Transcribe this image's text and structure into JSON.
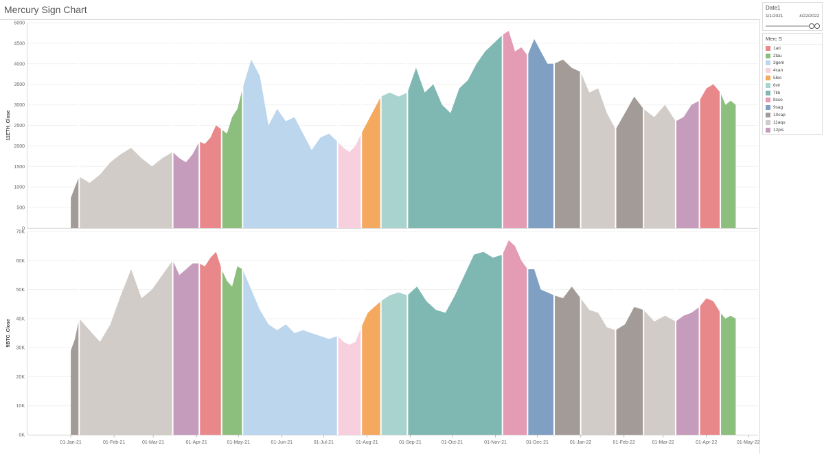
{
  "title": "Mercury Sign Chart",
  "date_filter": {
    "title": "Date1",
    "start": "1/1/2021",
    "end": "4/22/2022"
  },
  "legend": {
    "title": "Merc S",
    "items": [
      {
        "label": "1ari",
        "color": "#e8888a"
      },
      {
        "label": "2tau",
        "color": "#8cbf7e"
      },
      {
        "label": "3gem",
        "color": "#bcd6ee"
      },
      {
        "label": "4can",
        "color": "#f8cfdc"
      },
      {
        "label": "5leo",
        "color": "#f4a95e"
      },
      {
        "label": "6vir",
        "color": "#a9d3cf"
      },
      {
        "label": "7lib",
        "color": "#7fb8b2"
      },
      {
        "label": "8sco",
        "color": "#e49bb4"
      },
      {
        "label": "9sag",
        "color": "#7f9fc3"
      },
      {
        "label": "10cap",
        "color": "#a39b98"
      },
      {
        "label": "11aqu",
        "color": "#d2ccc8"
      },
      {
        "label": "12pis",
        "color": "#c69cbd"
      }
    ]
  },
  "chart_data": [
    {
      "type": "area",
      "ylabel": "11ETH_Close",
      "ylim": [
        0,
        5000
      ],
      "yticks": [
        "0",
        "500",
        "1000",
        "1500",
        "2000",
        "2500",
        "3000",
        "3500",
        "4000",
        "4500",
        "5000"
      ],
      "xticks": [
        "01-Jan-21",
        "01-Feb-21",
        "01-Mar-21",
        "01-Apr-21",
        "01-May-21",
        "01-Jun-21",
        "01-Jul-21",
        "01-Aug-21",
        "01-Sep-21",
        "01-Oct-21",
        "01-Nov-21",
        "01-Dec-21",
        "01-Jan-22",
        "01-Feb-22",
        "01-Mar-22",
        "01-Apr-22",
        "01-May-22"
      ],
      "series": [
        {
          "sign": "10cap",
          "start": "2021-01-01",
          "end": "2021-01-07",
          "values": [
            730,
            1000,
            1250
          ]
        },
        {
          "sign": "11aqu",
          "start": "2021-01-07",
          "end": "2021-03-15",
          "values": [
            1250,
            1100,
            1300,
            1600,
            1800,
            1950,
            1700,
            1500,
            1700,
            1850
          ]
        },
        {
          "sign": "12pis",
          "start": "2021-03-15",
          "end": "2021-04-03",
          "values": [
            1850,
            1700,
            1600,
            1800,
            2100
          ]
        },
        {
          "sign": "1ari",
          "start": "2021-04-03",
          "end": "2021-04-19",
          "values": [
            2100,
            2050,
            2200,
            2500,
            2400
          ]
        },
        {
          "sign": "2tau",
          "start": "2021-04-19",
          "end": "2021-05-04",
          "values": [
            2400,
            2300,
            2700,
            2900,
            3400
          ]
        },
        {
          "sign": "3gem",
          "start": "2021-05-04",
          "end": "2021-07-11",
          "values": [
            3400,
            4100,
            3700,
            2500,
            2900,
            2600,
            2700,
            2300,
            1900,
            2200,
            2300,
            2100
          ]
        },
        {
          "sign": "4can",
          "start": "2021-07-11",
          "end": "2021-07-28",
          "values": [
            2100,
            1950,
            1850,
            2000,
            2300
          ]
        },
        {
          "sign": "5leo",
          "start": "2021-07-28",
          "end": "2021-08-11",
          "values": [
            2300,
            2600,
            2900,
            3200
          ]
        },
        {
          "sign": "6vir",
          "start": "2021-08-11",
          "end": "2021-08-30",
          "values": [
            3200,
            3300,
            3200,
            3300
          ]
        },
        {
          "sign": "7lib",
          "start": "2021-08-30",
          "end": "2021-11-06",
          "values": [
            3300,
            3900,
            3300,
            3500,
            3000,
            2800,
            3400,
            3600,
            4000,
            4300,
            4500,
            4700
          ]
        },
        {
          "sign": "8sco",
          "start": "2021-11-06",
          "end": "2021-11-24",
          "values": [
            4700,
            4800,
            4300,
            4400,
            4200
          ]
        },
        {
          "sign": "9sag",
          "start": "2021-11-24",
          "end": "2021-12-13",
          "values": [
            4200,
            4600,
            4300,
            4000,
            4000
          ]
        },
        {
          "sign": "10cap",
          "start": "2021-12-13",
          "end": "2022-01-01",
          "values": [
            4000,
            4100,
            3900,
            3800
          ]
        },
        {
          "sign": "11aqu",
          "start": "2022-01-01",
          "end": "2022-01-26",
          "values": [
            3800,
            3300,
            3400,
            2800,
            2400
          ]
        },
        {
          "sign": "10cap",
          "start": "2022-01-26",
          "end": "2022-02-15",
          "values": [
            2400,
            2800,
            3200,
            2900
          ]
        },
        {
          "sign": "11aqu",
          "start": "2022-02-15",
          "end": "2022-03-10",
          "values": [
            2900,
            2700,
            3000,
            2600
          ]
        },
        {
          "sign": "12pis",
          "start": "2022-03-10",
          "end": "2022-03-27",
          "values": [
            2600,
            2700,
            3000,
            3100
          ]
        },
        {
          "sign": "1ari",
          "start": "2022-03-27",
          "end": "2022-04-11",
          "values": [
            3100,
            3400,
            3500,
            3300
          ]
        },
        {
          "sign": "2tau",
          "start": "2022-04-11",
          "end": "2022-04-22",
          "values": [
            3300,
            3000,
            3100,
            3000
          ]
        }
      ]
    },
    {
      "type": "area",
      "ylabel": "9BTC_Close",
      "ylim": [
        0,
        70000
      ],
      "yticks": [
        "0K",
        "10K",
        "20K",
        "30K",
        "40K",
        "50K",
        "60K",
        "70K"
      ],
      "xticks": [
        "01-Jan-21",
        "01-Feb-21",
        "01-Mar-21",
        "01-Apr-21",
        "01-May-21",
        "01-Jun-21",
        "01-Jul-21",
        "01-Aug-21",
        "01-Sep-21",
        "01-Oct-21",
        "01-Nov-21",
        "01-Dec-21",
        "01-Jan-22",
        "01-Feb-22",
        "01-Mar-22",
        "01-Apr-22",
        "01-May-22"
      ],
      "series": [
        {
          "sign": "10cap",
          "start": "2021-01-01",
          "end": "2021-01-07",
          "values": [
            29000,
            33000,
            40000
          ]
        },
        {
          "sign": "11aqu",
          "start": "2021-01-07",
          "end": "2021-03-15",
          "values": [
            40000,
            36000,
            32000,
            38000,
            48000,
            57000,
            47000,
            50000,
            55000,
            60000
          ]
        },
        {
          "sign": "12pis",
          "start": "2021-03-15",
          "end": "2021-04-03",
          "values": [
            60000,
            55000,
            57000,
            59000,
            59000
          ]
        },
        {
          "sign": "1ari",
          "start": "2021-04-03",
          "end": "2021-04-19",
          "values": [
            59000,
            58000,
            61000,
            63000,
            57000
          ]
        },
        {
          "sign": "2tau",
          "start": "2021-04-19",
          "end": "2021-05-04",
          "values": [
            57000,
            53000,
            51000,
            58000,
            57000
          ]
        },
        {
          "sign": "3gem",
          "start": "2021-05-04",
          "end": "2021-07-11",
          "values": [
            57000,
            50000,
            43000,
            38000,
            36000,
            38000,
            35000,
            36000,
            35000,
            34000,
            33000,
            34000
          ]
        },
        {
          "sign": "4can",
          "start": "2021-07-11",
          "end": "2021-07-28",
          "values": [
            34000,
            32000,
            31000,
            32000,
            37000
          ]
        },
        {
          "sign": "5leo",
          "start": "2021-07-28",
          "end": "2021-08-11",
          "values": [
            37000,
            42000,
            44000,
            46000
          ]
        },
        {
          "sign": "6vir",
          "start": "2021-08-11",
          "end": "2021-08-30",
          "values": [
            46000,
            48000,
            49000,
            48000
          ]
        },
        {
          "sign": "7lib",
          "start": "2021-08-30",
          "end": "2021-11-06",
          "values": [
            48000,
            51000,
            46000,
            43000,
            42000,
            48000,
            55000,
            62000,
            63000,
            61000,
            62000
          ]
        },
        {
          "sign": "8sco",
          "start": "2021-11-06",
          "end": "2021-11-24",
          "values": [
            62000,
            67000,
            65000,
            60000,
            57000
          ]
        },
        {
          "sign": "9sag",
          "start": "2021-11-24",
          "end": "2021-12-13",
          "values": [
            57000,
            57000,
            50000,
            49000,
            48000
          ]
        },
        {
          "sign": "10cap",
          "start": "2021-12-13",
          "end": "2022-01-01",
          "values": [
            48000,
            47000,
            51000,
            47000
          ]
        },
        {
          "sign": "11aqu",
          "start": "2022-01-01",
          "end": "2022-01-26",
          "values": [
            47000,
            43000,
            42000,
            37000,
            36000
          ]
        },
        {
          "sign": "10cap",
          "start": "2022-01-26",
          "end": "2022-02-15",
          "values": [
            36000,
            38000,
            44000,
            43000
          ]
        },
        {
          "sign": "11aqu",
          "start": "2022-02-15",
          "end": "2022-03-10",
          "values": [
            43000,
            39000,
            41000,
            39000
          ]
        },
        {
          "sign": "12pis",
          "start": "2022-03-10",
          "end": "2022-03-27",
          "values": [
            39000,
            41000,
            42000,
            44000
          ]
        },
        {
          "sign": "1ari",
          "start": "2022-03-27",
          "end": "2022-04-11",
          "values": [
            44000,
            47000,
            46000,
            42000
          ]
        },
        {
          "sign": "2tau",
          "start": "2022-04-11",
          "end": "2022-04-22",
          "values": [
            42000,
            40000,
            41000,
            40000
          ]
        }
      ]
    }
  ]
}
